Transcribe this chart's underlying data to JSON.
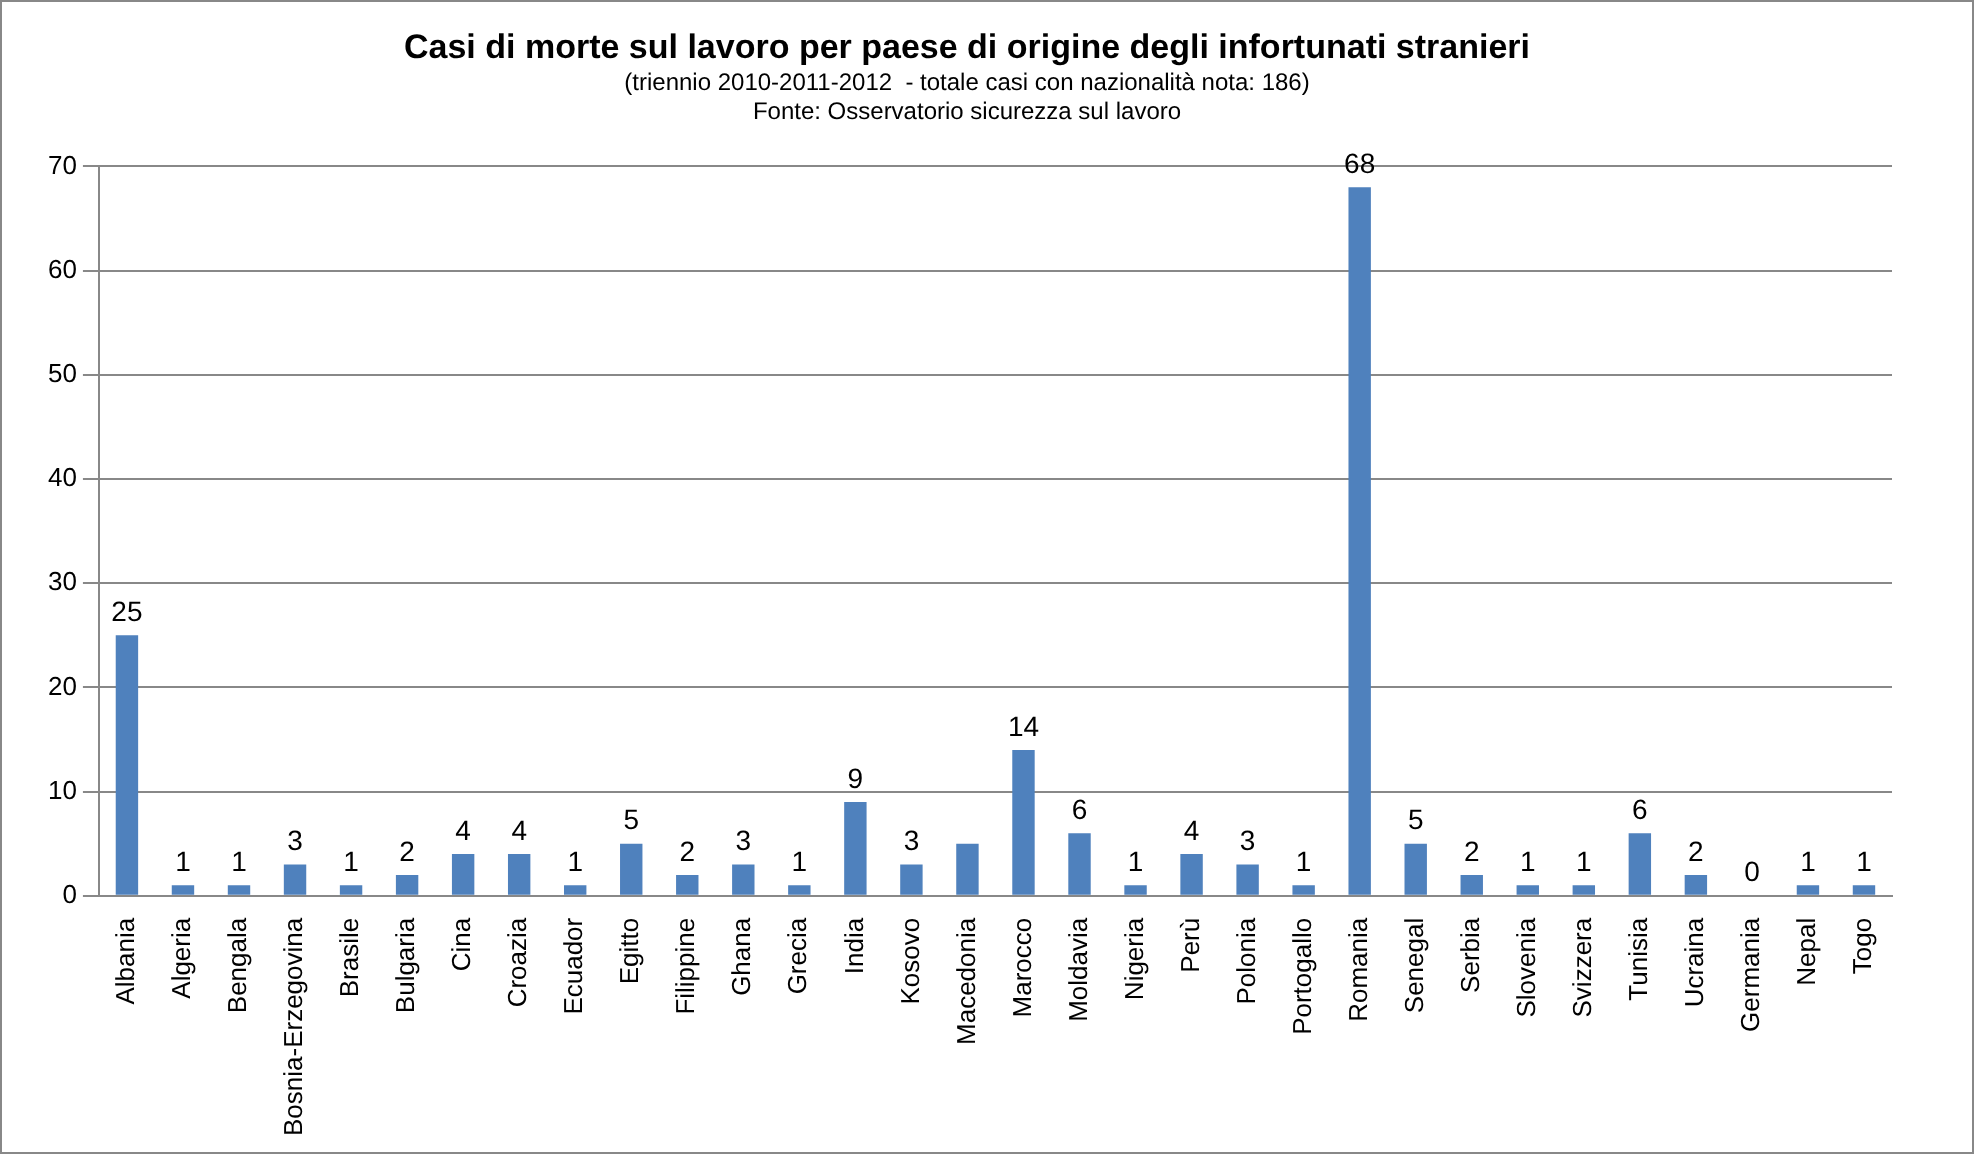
{
  "chart_data": {
    "type": "bar",
    "title": "Casi di morte sul lavoro per paese di origine degli infortunati stranieri",
    "subtitle": "(triennio 2010-2011-2012  - totale casi con nazionalità nota: 186)",
    "annotations": [
      "Fonte: Osservatorio sicurezza sul lavoro"
    ],
    "categories": [
      "Albania",
      "Algeria",
      "Bengala",
      "Bosnia-Erzegovina",
      "Brasile",
      "Bulgaria",
      "Cina",
      "Croazia",
      "Ecuador",
      "Egitto",
      "Filippine",
      "Ghana",
      "Grecia",
      "India",
      "Kosovo",
      "Macedonia",
      "Marocco",
      "Moldavia",
      "Nigeria",
      "Perù",
      "Polonia",
      "Portogallo",
      "Romania",
      "Senegal",
      "Serbia",
      "Slovenia",
      "Svizzera",
      "Tunisia",
      "Ucraina",
      "Germania",
      "Nepal",
      "Togo"
    ],
    "values": [
      25,
      1,
      1,
      3,
      1,
      2,
      4,
      4,
      1,
      5,
      2,
      3,
      1,
      9,
      3,
      5,
      14,
      6,
      1,
      4,
      3,
      1,
      68,
      5,
      2,
      1,
      1,
      6,
      2,
      0,
      1,
      1
    ],
    "value_labels": [
      "25",
      "1",
      "1",
      "3",
      "1",
      "2",
      "4",
      "4",
      "1",
      "5",
      "2",
      "3",
      "1",
      "9",
      "3",
      null,
      "14",
      "6",
      "1",
      "4",
      "3",
      "1",
      "68",
      "5",
      "2",
      "1",
      "1",
      "6",
      "2",
      "0",
      "1",
      "1"
    ],
    "color": "#4f81bd",
    "ylim": [
      0,
      70
    ],
    "yticks": [
      0,
      10,
      20,
      30,
      40,
      50,
      60,
      70
    ],
    "grid": "y",
    "legend": false
  }
}
